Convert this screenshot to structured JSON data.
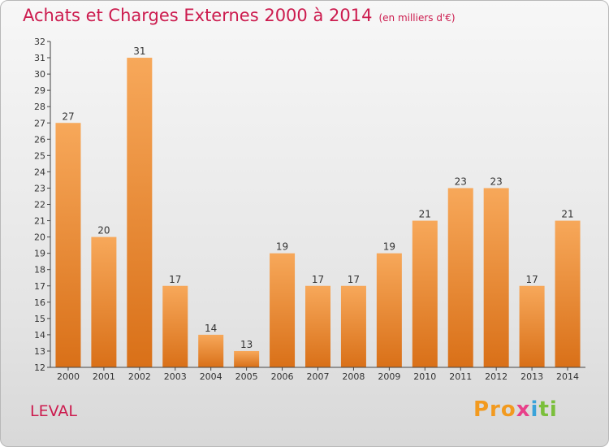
{
  "header": {
    "title": "Achats et Charges Externes 2000 à 2014",
    "unit": "(en milliers d'€)"
  },
  "footer": {
    "city": "LEVAL",
    "logo": "Proxiti"
  },
  "colors": {
    "bar_top": "#f7a85a",
    "bar_bottom": "#d97018",
    "title": "#cc1b4e"
  },
  "chart_data": {
    "type": "bar",
    "title": "Achats et Charges Externes 2000 à 2014",
    "xlabel": "",
    "ylabel": "",
    "categories": [
      "2000",
      "2001",
      "2002",
      "2003",
      "2004",
      "2005",
      "2006",
      "2007",
      "2008",
      "2009",
      "2010",
      "2011",
      "2012",
      "2013",
      "2014"
    ],
    "values": [
      27,
      20,
      31,
      17,
      14,
      13,
      19,
      17,
      17,
      19,
      21,
      23,
      23,
      17,
      21
    ],
    "ylim": [
      12,
      32
    ],
    "yticks": [
      12,
      13,
      14,
      15,
      16,
      17,
      18,
      19,
      20,
      21,
      22,
      23,
      24,
      25,
      26,
      27,
      28,
      29,
      30,
      31,
      32
    ],
    "grid": false,
    "legend": "none"
  }
}
